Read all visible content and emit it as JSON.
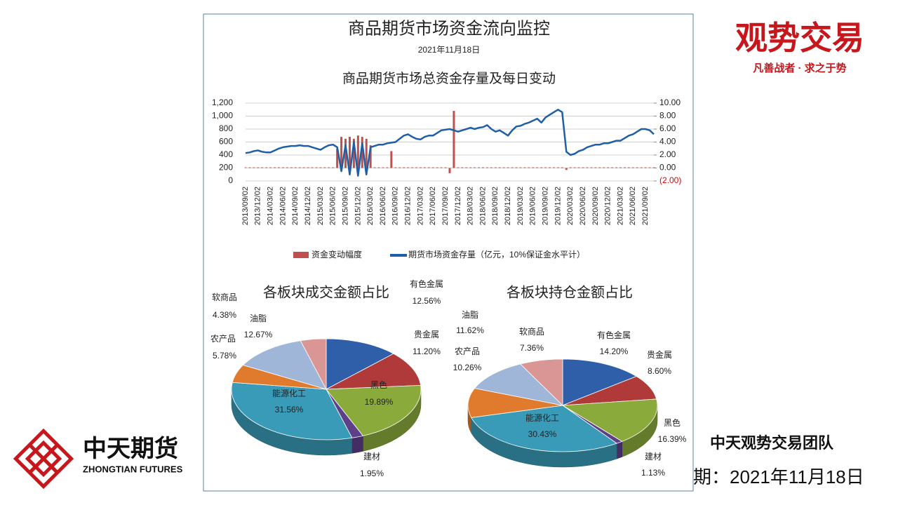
{
  "slide": {
    "brand_title": "观势交易",
    "brand_slogan": "凡善战者 · 求之于势",
    "company_cn": "中天期货",
    "company_en": "ZHONGTIAN FUTURES",
    "team": "中天观势交易团队",
    "date_line": "期：2021年11月18日"
  },
  "panel": {
    "title": "商品期货市场资金流向监控",
    "date": "2021年11月18日"
  },
  "chart_data": [
    {
      "type": "combo",
      "title": "商品期货市场总资金存量及每日变动",
      "categories": [
        "2013/09/02",
        null,
        null,
        "2013/12/02",
        null,
        null,
        "2014/03/02",
        null,
        null,
        "2014/06/02",
        null,
        null,
        "2014/09/02",
        null,
        null,
        "2014/12/02",
        null,
        null,
        "2015/03/02",
        null,
        null,
        "2015/06/02",
        null,
        null,
        "2015/09/02",
        null,
        null,
        "2015/12/02",
        null,
        null,
        "2016/03/02",
        null,
        null,
        "2016/06/02",
        null,
        null,
        "2016/09/02",
        null,
        null,
        "2016/12/02",
        null,
        null,
        "2017/03/02",
        null,
        null,
        "2017/06/02",
        null,
        null,
        "2017/09/02",
        null,
        null,
        "2017/12/02",
        null,
        null,
        "2018/03/02",
        null,
        null,
        "2018/06/02",
        null,
        null,
        "2018/09/02",
        null,
        null,
        "2018/12/02",
        null,
        null,
        "2019/03/02",
        null,
        null,
        "2019/06/02",
        null,
        null,
        "2019/09/02",
        null,
        null,
        "2019/12/02",
        null,
        null,
        "2020/03/02",
        null,
        null,
        "2020/06/02",
        null,
        null,
        "2020/09/02",
        null,
        null,
        "2020/12/02",
        null,
        null,
        "2021/03/02",
        null,
        null,
        "2021/06/02",
        null,
        null,
        "2021/09/02",
        null,
        null
      ],
      "series": [
        {
          "name": "资金变动幅度",
          "type": "bar",
          "axis": "y2",
          "color": "#c0504d",
          "values": [
            0.1,
            0.1,
            0.1,
            0.1,
            0.1,
            0.1,
            0.1,
            0.1,
            0.1,
            0.1,
            0.1,
            0.1,
            0.1,
            0.1,
            0.1,
            0.1,
            0.1,
            0.1,
            0.1,
            0.1,
            0.1,
            0.1,
            3.0,
            4.8,
            4.5,
            4.8,
            4.5,
            5.0,
            4.8,
            4.5,
            3.5,
            0.1,
            0.1,
            0.1,
            0.1,
            2.6,
            0.1,
            0.1,
            0.1,
            0.1,
            0.1,
            0.1,
            0.1,
            0.1,
            0.1,
            0.1,
            0.1,
            0.1,
            0.1,
            -0.8,
            8.8,
            0.1,
            0.1,
            0.1,
            0.1,
            0.1,
            0.1,
            0.1,
            0.1,
            0.1,
            0.1,
            0.1,
            0.1,
            0.1,
            0.1,
            0.1,
            0.1,
            0.1,
            0.1,
            0.1,
            0.1,
            0.1,
            0.1,
            0.1,
            0.1,
            0.1,
            0.1,
            -0.3,
            0.1,
            0.1,
            0.1,
            0.1,
            0.1,
            0.1,
            0.1,
            0.1,
            0.1,
            0.1,
            0.1,
            0.1,
            0.1,
            0.1,
            0.1,
            0.1,
            0.1,
            0.1,
            0.1,
            0.1,
            0.1
          ]
        },
        {
          "name": "期货市场资金存量（亿元，10%保证金水平计）",
          "type": "line",
          "color": "#1f5fa8",
          "values": [
            430,
            440,
            460,
            470,
            450,
            440,
            440,
            470,
            500,
            520,
            530,
            540,
            540,
            550,
            540,
            540,
            520,
            500,
            480,
            520,
            550,
            560,
            520,
            150,
            550,
            100,
            600,
            80,
            580,
            100,
            520,
            540,
            560,
            560,
            580,
            590,
            600,
            650,
            700,
            720,
            680,
            650,
            640,
            680,
            700,
            700,
            740,
            780,
            790,
            800,
            780,
            760,
            780,
            800,
            820,
            800,
            820,
            830,
            860,
            800,
            760,
            780,
            740,
            700,
            780,
            840,
            850,
            880,
            900,
            930,
            960,
            900,
            980,
            1020,
            1060,
            1100,
            1060,
            450,
            400,
            420,
            460,
            480,
            520,
            540,
            560,
            560,
            580,
            580,
            600,
            620,
            620,
            660,
            700,
            720,
            760,
            800,
            800,
            780,
            720
          ]
        }
      ],
      "ylim": [
        0,
        1200
      ],
      "yticks": [
        0,
        200,
        400,
        600,
        800,
        {
          "value": 1000,
          "label": "1,000"
        },
        {
          "value": 1200,
          "label": "1,200"
        }
      ],
      "y2lim": [
        -2,
        10
      ],
      "y2ticks": [
        {
          "value": -2,
          "label": "(2.00)"
        },
        {
          "value": 0,
          "label": "0.00"
        },
        {
          "value": 2,
          "label": "2.00"
        },
        {
          "value": 4,
          "label": "4.00"
        },
        {
          "value": 6,
          "label": "6.00"
        },
        {
          "value": 8,
          "label": "8.00"
        },
        {
          "value": 10,
          "label": "10.00"
        }
      ],
      "negative_tick_color": "#e00000",
      "grid": true,
      "legend": "bottom"
    },
    {
      "type": "pie",
      "title": "各板块成交金额占比",
      "categories": [
        "有色金属",
        "贵金属",
        "黑色",
        "建材",
        "能源化工",
        "农产品",
        "油脂",
        "软商品"
      ],
      "values": [
        12.56,
        11.2,
        19.89,
        1.95,
        31.56,
        5.78,
        12.67,
        4.38
      ],
      "value_labels": [
        "12.56%",
        "11.20%",
        "19.89%",
        "1.95%",
        "31.56%",
        "5.78%",
        "12.67%",
        "4.38%"
      ],
      "colors": [
        "#2e5fa8",
        "#b03a3a",
        "#8aab3c",
        "#5e3f8a",
        "#3a9bb8",
        "#e07b2e",
        "#9fb6d8",
        "#d99694"
      ]
    },
    {
      "type": "pie",
      "title": "各板块持仓金额占比",
      "categories": [
        "有色金属",
        "贵金属",
        "黑色",
        "建材",
        "能源化工",
        "农产品",
        "油脂",
        "软商品"
      ],
      "values": [
        14.2,
        8.6,
        16.39,
        1.13,
        30.43,
        10.26,
        11.62,
        7.36
      ],
      "value_labels": [
        "14.20%",
        "8.60%",
        "16.39%",
        "1.13%",
        "30.43%",
        "10.26%",
        "11.62%",
        "7.36%"
      ],
      "colors": [
        "#2e5fa8",
        "#b03a3a",
        "#8aab3c",
        "#5e3f8a",
        "#3a9bb8",
        "#e07b2e",
        "#9fb6d8",
        "#d99694"
      ]
    }
  ]
}
